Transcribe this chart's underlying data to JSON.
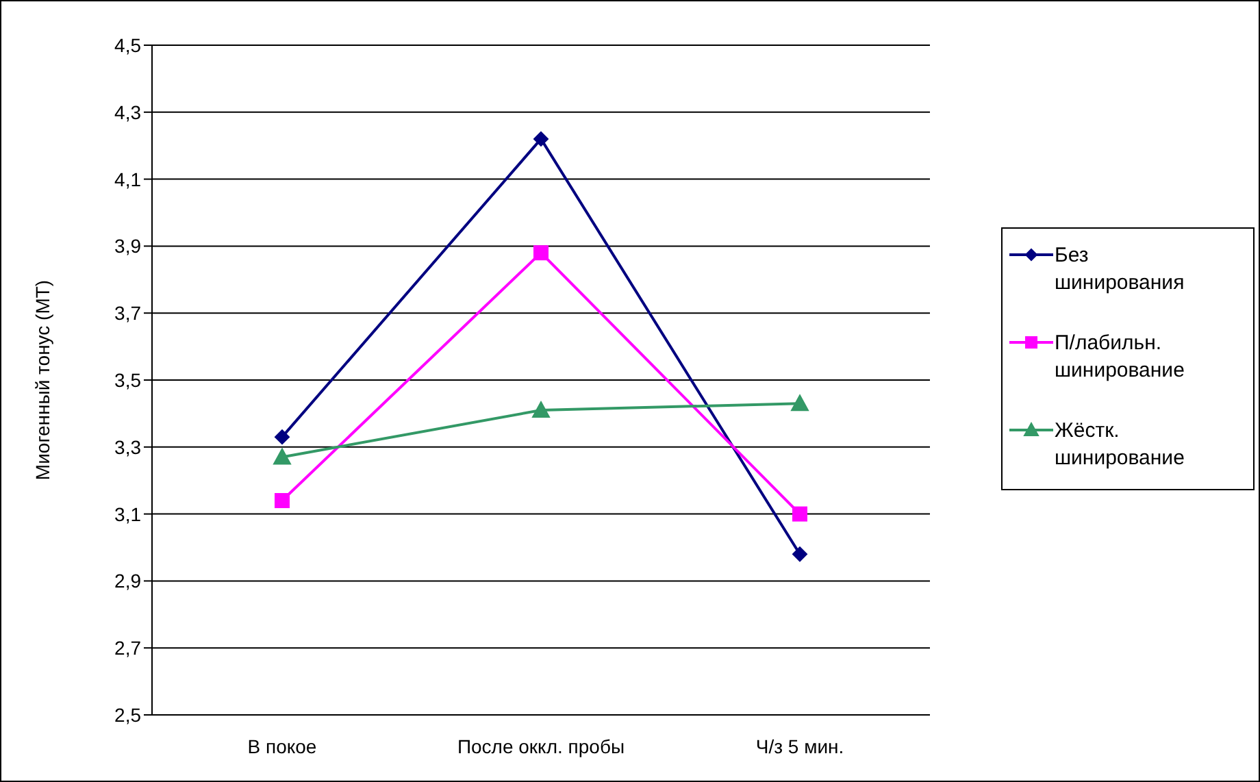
{
  "chart_data": {
    "type": "line",
    "ylabel": "Миогенный тонус (МТ)",
    "categories": [
      "В покое",
      "После оккл. пробы",
      "Ч/з 5 мин."
    ],
    "series": [
      {
        "name": "Без шинирования",
        "color": "#000080",
        "marker": "diamond",
        "values": [
          3.33,
          4.22,
          2.98
        ]
      },
      {
        "name": "П/лабильн. шинирование",
        "color": "#ff00ff",
        "marker": "square",
        "values": [
          3.14,
          3.88,
          3.1
        ]
      },
      {
        "name": "Жёстк. шинирование",
        "color": "#339966",
        "marker": "triangle",
        "values": [
          3.27,
          3.41,
          3.43
        ]
      }
    ],
    "ylim": [
      2.5,
      4.5
    ],
    "yticks": [
      {
        "value": 2.5,
        "label": "2,5"
      },
      {
        "value": 2.7,
        "label": "2,7"
      },
      {
        "value": 2.9,
        "label": "2,9"
      },
      {
        "value": 3.1,
        "label": "3,1"
      },
      {
        "value": 3.3,
        "label": "3,3"
      },
      {
        "value": 3.5,
        "label": "3,5"
      },
      {
        "value": 3.7,
        "label": "3,7"
      },
      {
        "value": 3.9,
        "label": "3,9"
      },
      {
        "value": 4.1,
        "label": "4,1"
      },
      {
        "value": 4.3,
        "label": "4,3"
      },
      {
        "value": 4.5,
        "label": "4,5"
      }
    ],
    "grid": "y",
    "legend": "right",
    "line_style": "solid"
  }
}
